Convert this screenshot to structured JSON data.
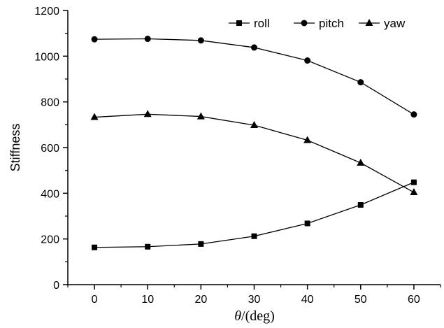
{
  "chart_data": {
    "type": "line",
    "xlabel_symbol": "θ",
    "xlabel_rest": "/(deg)",
    "ylabel": "Stiffness",
    "x": [
      0,
      10,
      20,
      30,
      40,
      50,
      60
    ],
    "xlim": [
      -5,
      65
    ],
    "ylim": [
      0,
      1200
    ],
    "x_ticks": [
      "0",
      "10",
      "20",
      "30",
      "40",
      "50",
      "60"
    ],
    "y_ticks": [
      "0",
      "200",
      "400",
      "600",
      "800",
      "1000",
      "1200"
    ],
    "legend_position": "top-right",
    "grid": false,
    "series": [
      {
        "name": "roll",
        "marker": "square",
        "values": [
          163,
          166,
          178,
          212,
          268,
          349,
          448
        ]
      },
      {
        "name": "pitch",
        "marker": "circle",
        "values": [
          1074,
          1076,
          1069,
          1038,
          981,
          886,
          745
        ]
      },
      {
        "name": "yaw",
        "marker": "triangle",
        "values": [
          733,
          746,
          736,
          698,
          632,
          533,
          404
        ]
      }
    ]
  }
}
